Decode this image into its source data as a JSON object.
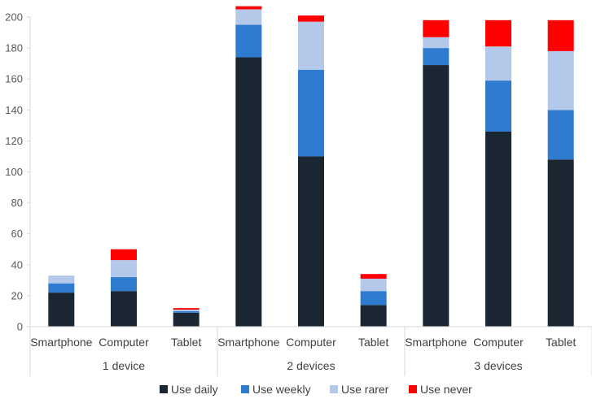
{
  "chart_data": {
    "type": "bar",
    "stacked": true,
    "title": "",
    "xlabel": "",
    "ylabel": "",
    "ylim": [
      0,
      200
    ],
    "yticks": [
      0,
      20,
      40,
      60,
      80,
      100,
      120,
      140,
      160,
      180,
      200
    ],
    "groups": [
      {
        "label": "1 device",
        "categories": [
          "Smartphone",
          "Computer",
          "Tablet"
        ]
      },
      {
        "label": "2 devices",
        "categories": [
          "Smartphone",
          "Computer",
          "Tablet"
        ]
      },
      {
        "label": "3 devices",
        "categories": [
          "Smartphone",
          "Computer",
          "Tablet"
        ]
      }
    ],
    "series": [
      {
        "name": "Use daily",
        "color": "#1a2733",
        "values": [
          22,
          23,
          9,
          174,
          110,
          14,
          169,
          126,
          108
        ]
      },
      {
        "name": "Use weekly",
        "color": "#2e7bcf",
        "values": [
          6,
          9,
          1,
          21,
          56,
          9,
          11,
          33,
          32
        ]
      },
      {
        "name": "Use rarer",
        "color": "#b4c9e9",
        "values": [
          5,
          11,
          1,
          10,
          31,
          8,
          7,
          22,
          38
        ]
      },
      {
        "name": "Use never",
        "color": "#ff0000",
        "values": [
          0,
          7,
          1,
          2,
          4,
          3,
          11,
          17,
          20
        ]
      }
    ],
    "legend_position": "bottom",
    "grid": false
  }
}
